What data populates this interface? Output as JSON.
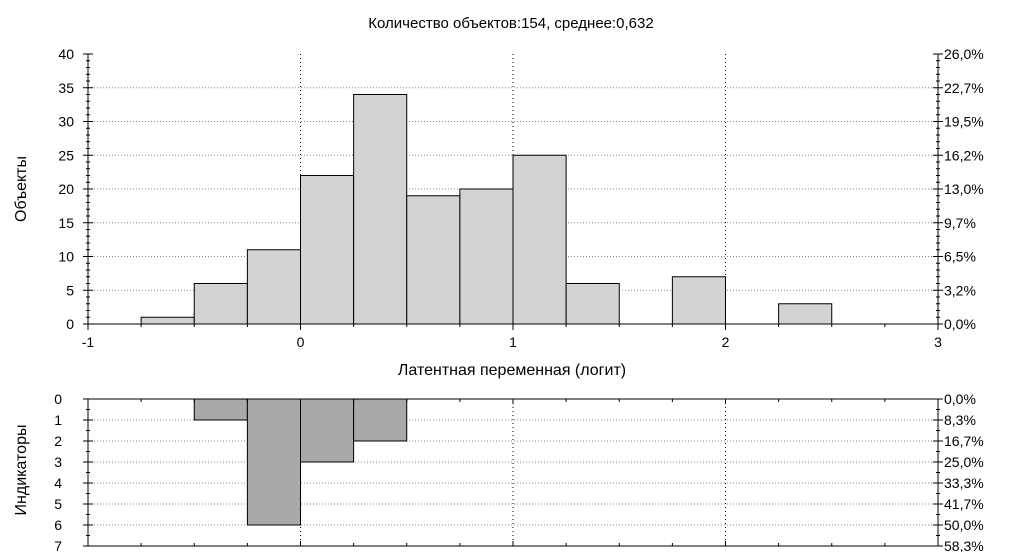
{
  "chart_data": [
    {
      "type": "bar",
      "title": "Количество объектов:154, среднее:0,632",
      "xlabel": "Латентная переменная (логит)",
      "ylabel": "Объекты",
      "xlim": [
        -1,
        3
      ],
      "ylim": [
        0,
        40
      ],
      "x_ticks": [
        "-1",
        "0",
        "1",
        "2",
        "3"
      ],
      "y_ticks": [
        "0",
        "5",
        "10",
        "15",
        "20",
        "25",
        "30",
        "35",
        "40"
      ],
      "y2_ticks": [
        "0,0%",
        "3,2%",
        "6,5%",
        "9,7%",
        "13,0%",
        "16,2%",
        "19,5%",
        "22,7%",
        "26,0%"
      ],
      "bin_width": 0.25,
      "bins": [
        {
          "start": -0.75,
          "value": 1
        },
        {
          "start": -0.5,
          "value": 6
        },
        {
          "start": -0.25,
          "value": 11
        },
        {
          "start": 0.0,
          "value": 22
        },
        {
          "start": 0.25,
          "value": 34
        },
        {
          "start": 0.5,
          "value": 19
        },
        {
          "start": 0.75,
          "value": 20
        },
        {
          "start": 1.0,
          "value": 25
        },
        {
          "start": 1.25,
          "value": 6
        },
        {
          "start": 1.75,
          "value": 7
        },
        {
          "start": 2.25,
          "value": 3
        }
      ],
      "grid": "dotted at x = 0, 1, 2 and y ticks",
      "colors": {
        "bar": "#d3d3d3",
        "edge": "#000000",
        "grid": "#888888"
      }
    },
    {
      "type": "bar",
      "orientation": "inverted",
      "ylabel": "Индикаторы",
      "xlim": [
        -1,
        3
      ],
      "ylim": [
        0,
        7
      ],
      "y_ticks": [
        "0",
        "1",
        "2",
        "3",
        "4",
        "5",
        "6",
        "7"
      ],
      "y2_ticks": [
        "0,0%",
        "8,3%",
        "16,7%",
        "25,0%",
        "33,3%",
        "41,7%",
        "50,0%",
        "58,3%"
      ],
      "bin_width": 0.25,
      "bins": [
        {
          "start": -0.5,
          "value": 1
        },
        {
          "start": -0.25,
          "value": 6
        },
        {
          "start": 0.0,
          "value": 3
        },
        {
          "start": 0.25,
          "value": 2
        }
      ],
      "grid": "dotted at x = 0, 1, 2",
      "colors": {
        "bar": "#a9a9a9",
        "edge": "#000000",
        "grid": "#888888"
      }
    }
  ]
}
